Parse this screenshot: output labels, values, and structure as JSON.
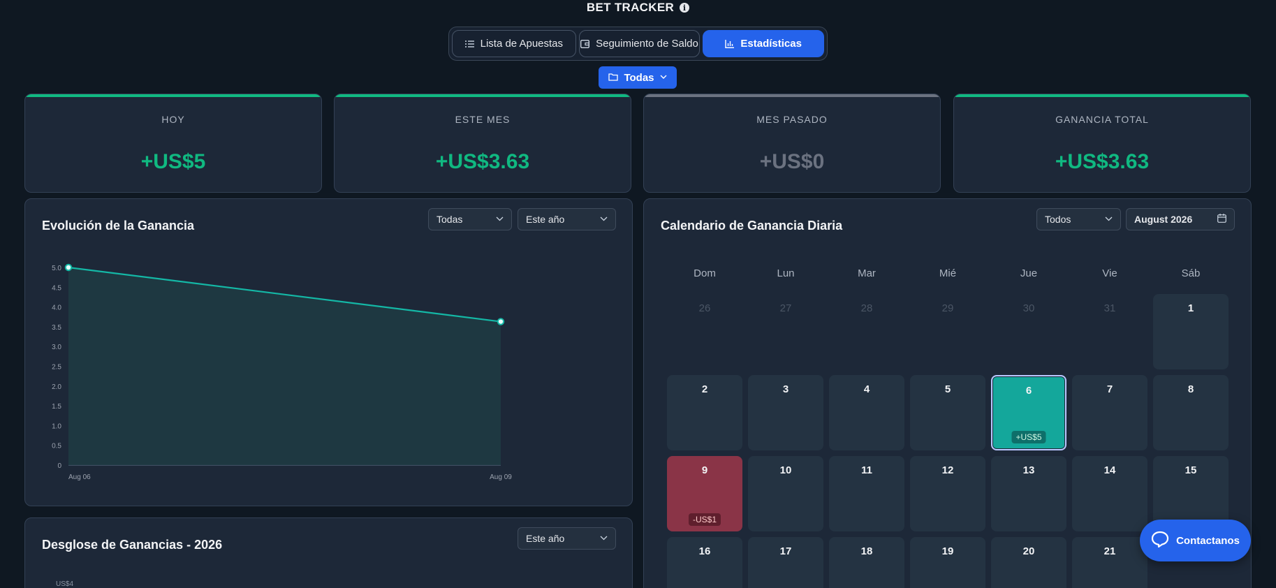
{
  "app": {
    "title": "BET TRACKER"
  },
  "tabs": [
    {
      "label": "Lista de Apuestas",
      "icon": "list-icon"
    },
    {
      "label": "Seguimiento de Saldo",
      "icon": "wallet-icon"
    },
    {
      "label": "Estadísticas",
      "icon": "bar-chart-icon",
      "active": true
    }
  ],
  "folder_filter": {
    "label": "Todas"
  },
  "stats": [
    {
      "label": "HOY",
      "value": "+US$5",
      "color": "#10b981"
    },
    {
      "label": "ESTE MES",
      "value": "+US$3.63",
      "color": "#10b981"
    },
    {
      "label": "MES PASADO",
      "value": "+US$0",
      "color": "#6b7280"
    },
    {
      "label": "GANANCIA TOTAL",
      "value": "+US$3.63",
      "color": "#10b981"
    }
  ],
  "evolution": {
    "title": "Evolución de la Ganancia",
    "filter_type": "Todas",
    "filter_period": "Este año"
  },
  "chart_data": {
    "type": "area",
    "x": [
      "Aug 06",
      "Aug 09"
    ],
    "series": [
      {
        "values": [
          5.0,
          3.63
        ]
      }
    ],
    "yticks": [
      "5.0",
      "4.5",
      "4.0",
      "3.5",
      "3.0",
      "2.5",
      "2.0",
      "1.5",
      "1.0",
      "0.5",
      "0"
    ],
    "ylim": [
      0,
      5
    ],
    "color": "#14b8a6",
    "grid": false
  },
  "breakdown": {
    "title": "Desglose de Ganancias - 2026",
    "filter_period": "Este año",
    "axis_first_label": "US$4"
  },
  "calendar": {
    "title": "Calendario de Ganancia Diaria",
    "filter": "Todos",
    "month": "August 2026",
    "weekdays": [
      "Dom",
      "Lun",
      "Mar",
      "Mié",
      "Jue",
      "Vie",
      "Sáb"
    ],
    "prev_days": [
      "26",
      "27",
      "28",
      "29",
      "30",
      "31"
    ],
    "days": [
      "1",
      "2",
      "3",
      "4",
      "5",
      "6",
      "7",
      "8",
      "9",
      "10",
      "11",
      "12",
      "13",
      "14",
      "15",
      "16",
      "17",
      "18",
      "19",
      "20",
      "21"
    ],
    "profit_day": {
      "day": "6",
      "amount": "+US$5"
    },
    "loss_day": {
      "day": "9",
      "amount": "-US$1"
    }
  },
  "contact": {
    "label": "Contactanos"
  }
}
